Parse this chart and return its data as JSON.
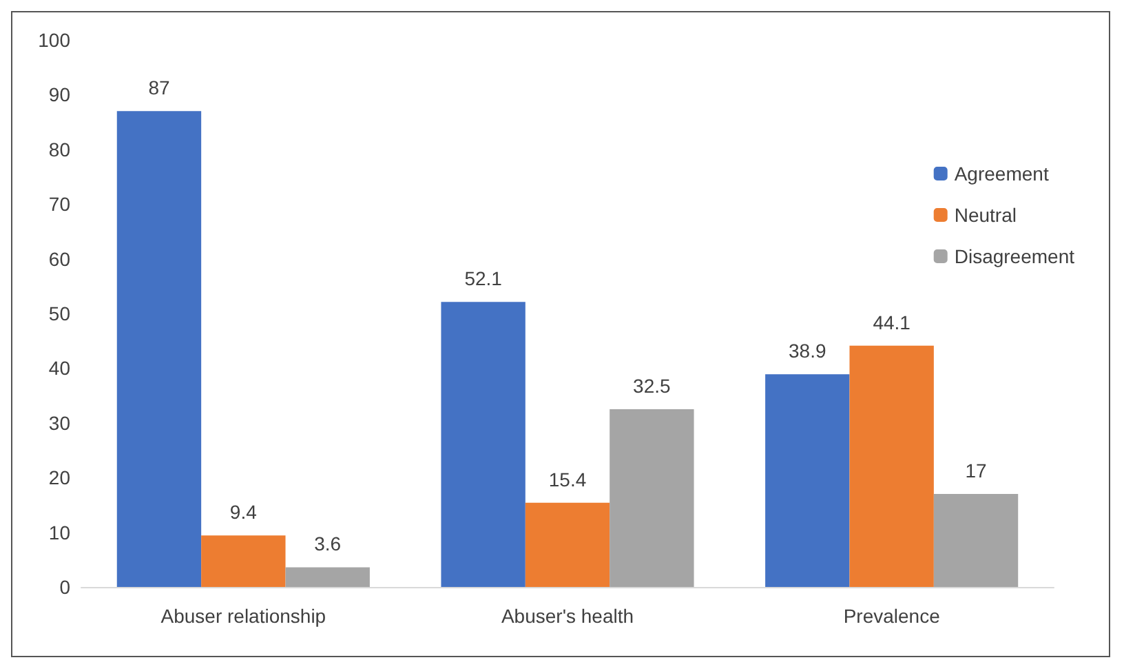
{
  "chart_data": {
    "type": "bar",
    "categories": [
      "Abuser relationship",
      "Abuser's health",
      "Prevalence"
    ],
    "series": [
      {
        "name": "Agreement",
        "color": "#4472c4",
        "values": [
          87,
          52.1,
          38.9
        ]
      },
      {
        "name": "Neutral",
        "color": "#ed7d31",
        "values": [
          9.4,
          15.4,
          44.1
        ]
      },
      {
        "name": "Disagreement",
        "color": "#a5a5a5",
        "values": [
          3.6,
          32.5,
          17
        ]
      }
    ],
    "ylim": [
      0,
      100
    ],
    "yticks": [
      0,
      10,
      20,
      30,
      40,
      50,
      60,
      70,
      80,
      90,
      100
    ],
    "grid": false,
    "legend": "right",
    "data_labels": true
  }
}
